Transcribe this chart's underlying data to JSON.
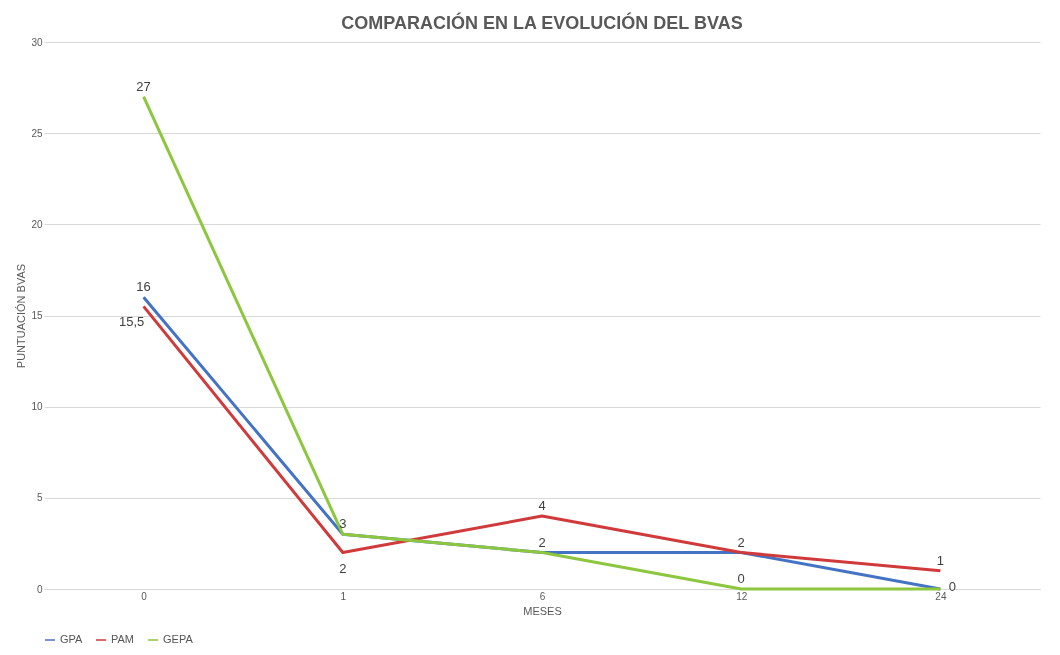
{
  "chart_data": {
    "type": "line",
    "title": "COMPARACIÓN EN LA EVOLUCIÓN DEL BVAS",
    "xlabel": "MESES",
    "ylabel": "PUNTUACIÓN BVAS",
    "categories": [
      "0",
      "1",
      "6",
      "12",
      "24"
    ],
    "series": [
      {
        "name": "GPA",
        "color": "#4472c4",
        "values": [
          16,
          3,
          2,
          2,
          0
        ],
        "value_labels": [
          "16",
          "3",
          "2",
          "2",
          "0"
        ]
      },
      {
        "name": "PAM",
        "color": "#d03a3a",
        "values": [
          15.5,
          2,
          4,
          2,
          1
        ],
        "value_labels": [
          "15,5",
          "2",
          "4",
          null,
          "1"
        ]
      },
      {
        "name": "GEPA",
        "color": "#8dc63f",
        "values": [
          27,
          3,
          2,
          0,
          0
        ],
        "value_labels": [
          "27",
          null,
          null,
          "0",
          null
        ]
      }
    ],
    "ylim": [
      0,
      30
    ],
    "yticks": [
      0,
      5,
      10,
      15,
      20,
      25,
      30
    ],
    "grid": "y",
    "legend": "bottom",
    "marker": "none",
    "line_style": "solid"
  }
}
